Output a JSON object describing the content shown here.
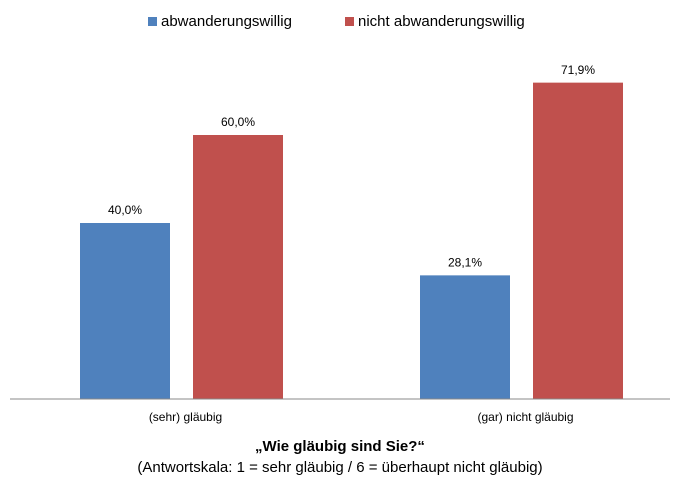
{
  "chart_data": {
    "type": "bar",
    "x_label": "„Wie gläubig sind Sie?“",
    "x_sublabel": "(Antwortskala: 1 = sehr gläubig / 6 = überhaupt nicht gläubig)",
    "categories": [
      "(sehr) gläubig",
      "(gar) nicht gläubig"
    ],
    "series": [
      {
        "name": "abwanderungswillig",
        "color": "#4f81bd",
        "values": [
          40.0,
          28.1
        ],
        "value_labels": [
          "40,0%",
          "28,1%"
        ]
      },
      {
        "name": "nicht abwanderungswillig",
        "color": "#c0504d",
        "values": [
          60.0,
          71.9
        ],
        "value_labels": [
          "60,0%",
          "71,9%"
        ]
      }
    ],
    "ylim": [
      0,
      80
    ],
    "legend": "top"
  }
}
